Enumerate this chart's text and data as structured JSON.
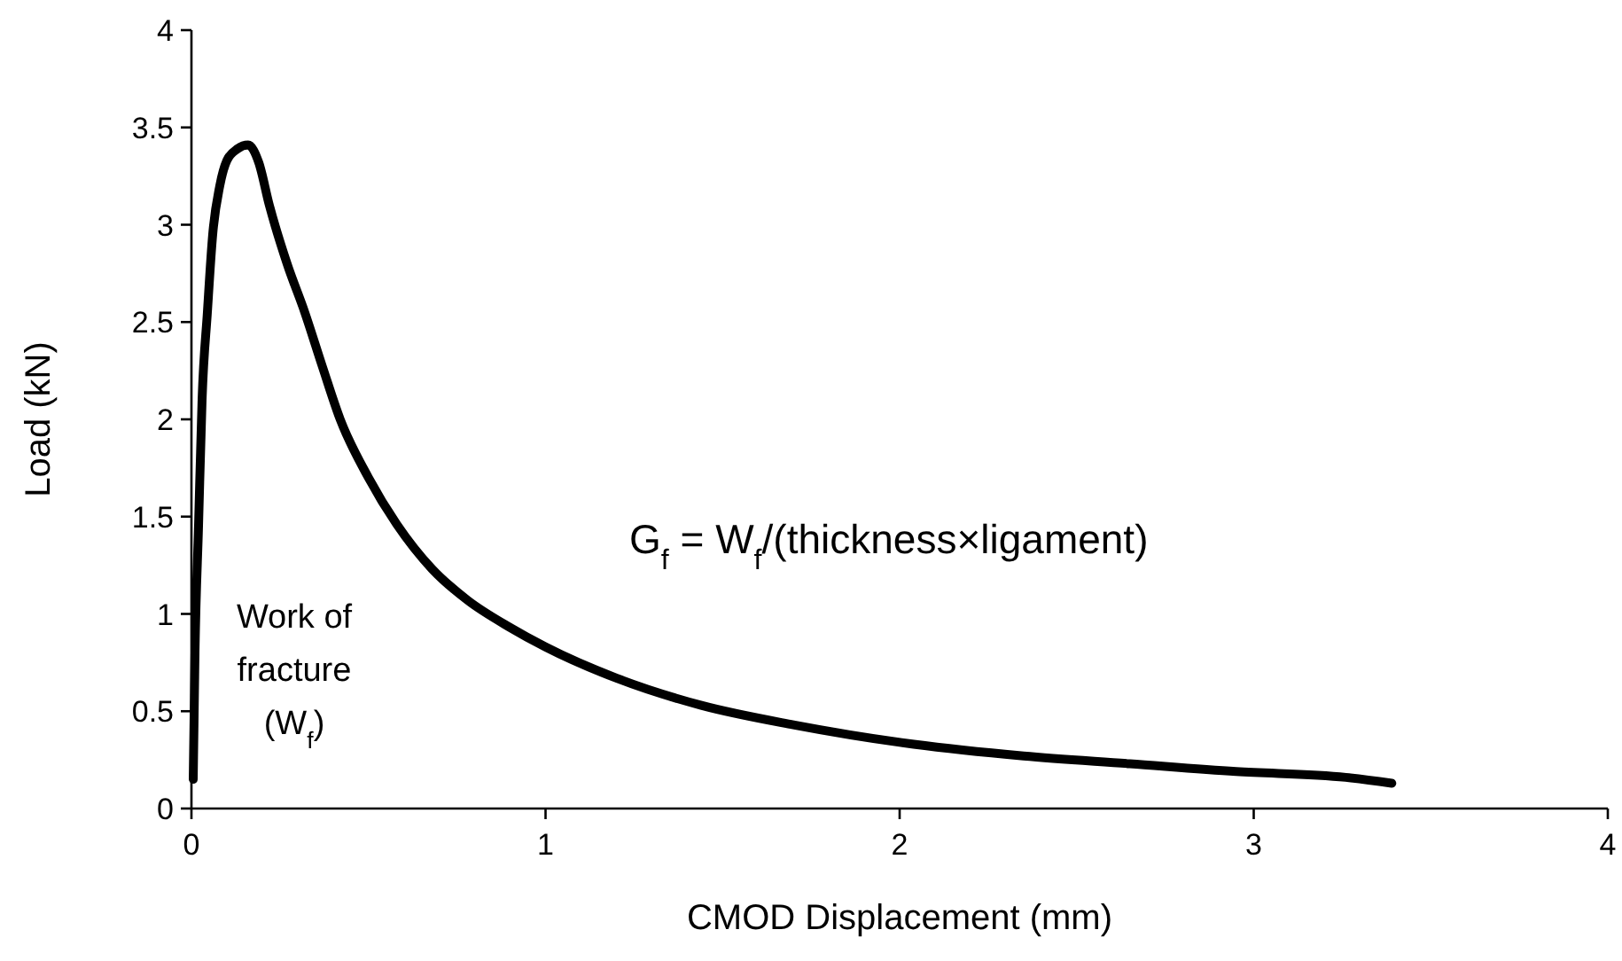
{
  "chart_data": {
    "type": "line",
    "xlabel": "CMOD Displacement (mm)",
    "ylabel": "Load (kN)",
    "x": [
      0.005,
      0.01,
      0.02,
      0.03,
      0.045,
      0.06,
      0.08,
      0.1,
      0.13,
      0.16,
      0.19,
      0.22,
      0.27,
      0.32,
      0.37,
      0.42,
      0.5,
      0.58,
      0.68,
      0.78,
      0.9,
      1.0,
      1.2,
      1.44,
      1.7,
      2.04,
      2.35,
      2.65,
      2.95,
      3.26,
      3.39
    ],
    "series": [
      {
        "color": "#000000",
        "values": [
          0.15,
          0.8,
          1.45,
          2.1,
          2.55,
          2.95,
          3.2,
          3.33,
          3.39,
          3.41,
          3.32,
          3.1,
          2.8,
          2.55,
          2.27,
          2.0,
          1.7,
          1.46,
          1.23,
          1.07,
          0.93,
          0.83,
          0.67,
          0.53,
          0.43,
          0.33,
          0.27,
          0.23,
          0.19,
          0.16,
          0.13
        ]
      }
    ],
    "xlim": [
      0,
      4
    ],
    "ylim": [
      0,
      4
    ],
    "xticks": [
      0,
      1,
      2,
      3,
      4
    ],
    "yticks": [
      0,
      0.5,
      1,
      1.5,
      2,
      2.5,
      3,
      3.5,
      4
    ],
    "grid": false,
    "marker": "none",
    "line_style": "solid",
    "annotations": [
      "Work of fracture (W$_{f}$)",
      "G$_{f}$ = W$_{f}$/(thickness×ligament)"
    ]
  }
}
